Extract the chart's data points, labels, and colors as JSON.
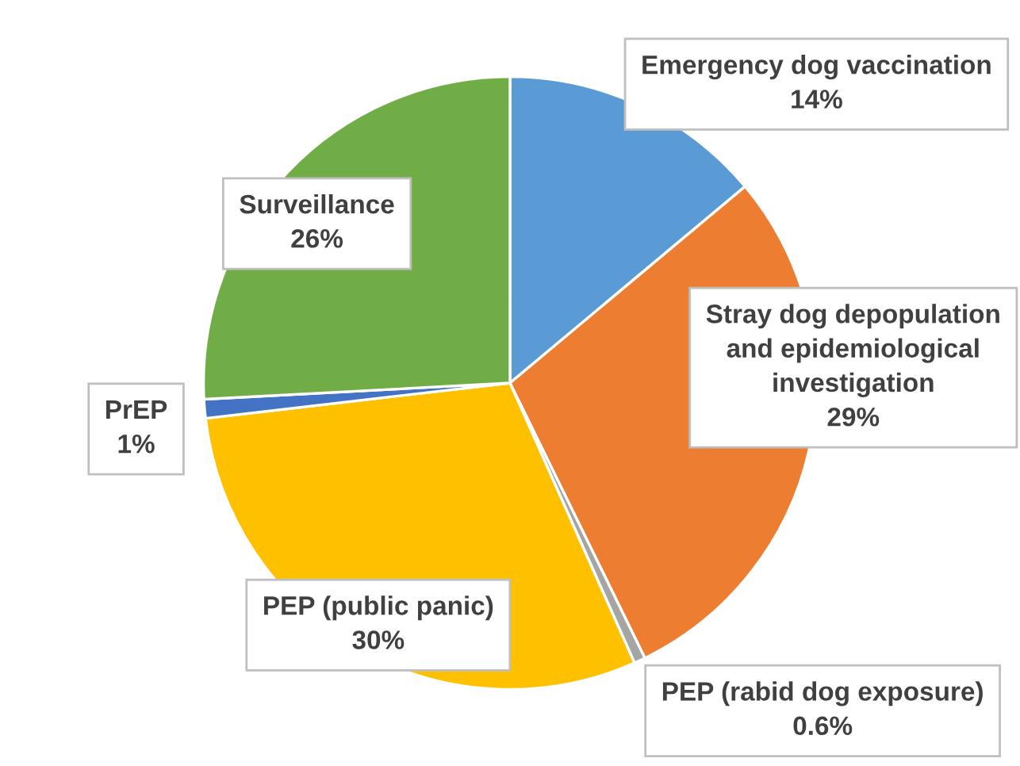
{
  "chart_data": {
    "type": "pie",
    "categories": [
      "Emergency dog vaccination",
      "Stray dog depopulation\nand epidemiological\ninvestigation",
      "PEP (rabid dog exposure)",
      "PEP (public panic)",
      "PrEP",
      "Surveillance"
    ],
    "values": [
      14,
      29,
      0.6,
      30,
      1,
      26
    ],
    "colors": [
      "#5b9bd5",
      "#ed7d31",
      "#a5a5a5",
      "#ffc000",
      "#4472c4",
      "#70ad47"
    ],
    "value_labels": [
      "14%",
      "29%",
      "0.6%",
      "30%",
      "1%",
      "26%"
    ],
    "legend": false
  }
}
